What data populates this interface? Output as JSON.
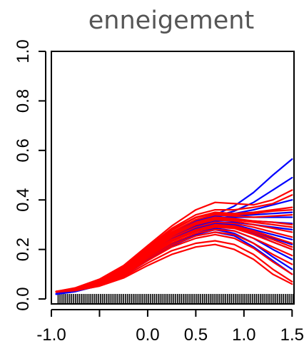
{
  "chart_data": {
    "type": "line",
    "title": "enneigement",
    "xlabel": "",
    "ylabel": "",
    "xlim": [
      -1.0,
      1.52
    ],
    "ylim": [
      -0.02,
      1.0
    ],
    "x_ticks": [
      -1.0,
      -0.5,
      0.0,
      0.5,
      1.0,
      1.5
    ],
    "x_tick_labels": [
      "-1.0",
      "",
      "0.0",
      "0.5",
      "1.0",
      "1.5"
    ],
    "y_ticks": [
      0.0,
      0.2,
      0.4,
      0.6,
      0.8,
      1.0
    ],
    "y_tick_labels": [
      "0.0",
      "0.2",
      "0.4",
      "0.6",
      "0.8",
      "1.0"
    ],
    "grid": false,
    "legend": "none",
    "colors": {
      "blue": "#0000ff",
      "red": "#ff0000",
      "axis": "#000000",
      "title": "#555555"
    },
    "x": [
      -0.95,
      -0.75,
      -0.5,
      -0.25,
      0.0,
      0.25,
      0.5,
      0.7,
      0.9,
      1.1,
      1.3,
      1.5
    ],
    "series": [
      {
        "color": "blue",
        "values": [
          0.02,
          0.035,
          0.07,
          0.125,
          0.2,
          0.265,
          0.315,
          0.34,
          0.375,
          0.43,
          0.5,
          0.565
        ]
      },
      {
        "color": "blue",
        "values": [
          0.02,
          0.035,
          0.07,
          0.125,
          0.2,
          0.265,
          0.31,
          0.335,
          0.355,
          0.39,
          0.44,
          0.49
        ]
      },
      {
        "color": "blue",
        "values": [
          0.02,
          0.033,
          0.066,
          0.12,
          0.195,
          0.26,
          0.305,
          0.33,
          0.345,
          0.36,
          0.38,
          0.4
        ]
      },
      {
        "color": "blue",
        "values": [
          0.02,
          0.033,
          0.066,
          0.118,
          0.19,
          0.255,
          0.3,
          0.325,
          0.335,
          0.34,
          0.345,
          0.35
        ]
      },
      {
        "color": "blue",
        "values": [
          0.02,
          0.032,
          0.064,
          0.115,
          0.185,
          0.25,
          0.295,
          0.32,
          0.33,
          0.33,
          0.33,
          0.33
        ]
      },
      {
        "color": "blue",
        "values": [
          0.02,
          0.032,
          0.062,
          0.112,
          0.18,
          0.245,
          0.29,
          0.31,
          0.31,
          0.3,
          0.29,
          0.28
        ]
      },
      {
        "color": "blue",
        "values": [
          0.02,
          0.031,
          0.06,
          0.11,
          0.175,
          0.24,
          0.285,
          0.305,
          0.3,
          0.28,
          0.26,
          0.24
        ]
      },
      {
        "color": "blue",
        "values": [
          0.02,
          0.031,
          0.058,
          0.105,
          0.17,
          0.235,
          0.275,
          0.295,
          0.29,
          0.265,
          0.23,
          0.2
        ]
      },
      {
        "color": "blue",
        "values": [
          0.02,
          0.03,
          0.056,
          0.1,
          0.165,
          0.225,
          0.265,
          0.285,
          0.275,
          0.245,
          0.2,
          0.16
        ]
      },
      {
        "color": "blue",
        "values": [
          0.02,
          0.03,
          0.055,
          0.098,
          0.16,
          0.22,
          0.26,
          0.28,
          0.265,
          0.225,
          0.17,
          0.12
        ]
      },
      {
        "color": "blue",
        "values": [
          0.02,
          0.03,
          0.054,
          0.095,
          0.155,
          0.215,
          0.255,
          0.27,
          0.255,
          0.21,
          0.155,
          0.1
        ]
      },
      {
        "color": "blue",
        "values": [
          0.02,
          0.032,
          0.063,
          0.113,
          0.183,
          0.248,
          0.293,
          0.315,
          0.32,
          0.315,
          0.31,
          0.305
        ]
      },
      {
        "color": "blue",
        "values": [
          0.02,
          0.031,
          0.059,
          0.108,
          0.173,
          0.238,
          0.28,
          0.3,
          0.295,
          0.27,
          0.245,
          0.22
        ]
      },
      {
        "color": "red",
        "values": [
          0.03,
          0.045,
          0.08,
          0.135,
          0.215,
          0.295,
          0.36,
          0.39,
          0.385,
          0.38,
          0.4,
          0.44
        ]
      },
      {
        "color": "red",
        "values": [
          0.03,
          0.044,
          0.078,
          0.132,
          0.21,
          0.285,
          0.34,
          0.36,
          0.36,
          0.37,
          0.385,
          0.42
        ]
      },
      {
        "color": "red",
        "values": [
          0.03,
          0.043,
          0.076,
          0.128,
          0.205,
          0.28,
          0.33,
          0.35,
          0.345,
          0.35,
          0.36,
          0.37
        ]
      },
      {
        "color": "red",
        "values": [
          0.03,
          0.042,
          0.074,
          0.125,
          0.2,
          0.27,
          0.32,
          0.34,
          0.335,
          0.33,
          0.335,
          0.34
        ]
      },
      {
        "color": "red",
        "values": [
          0.03,
          0.042,
          0.072,
          0.122,
          0.195,
          0.265,
          0.31,
          0.33,
          0.325,
          0.315,
          0.31,
          0.3
        ]
      },
      {
        "color": "red",
        "values": [
          0.03,
          0.041,
          0.07,
          0.118,
          0.19,
          0.255,
          0.3,
          0.32,
          0.315,
          0.3,
          0.285,
          0.27
        ]
      },
      {
        "color": "red",
        "values": [
          0.03,
          0.04,
          0.068,
          0.115,
          0.185,
          0.248,
          0.29,
          0.31,
          0.305,
          0.29,
          0.27,
          0.25
        ]
      },
      {
        "color": "red",
        "values": [
          0.03,
          0.04,
          0.066,
          0.112,
          0.18,
          0.24,
          0.28,
          0.3,
          0.295,
          0.275,
          0.25,
          0.225
        ]
      },
      {
        "color": "red",
        "values": [
          0.028,
          0.039,
          0.064,
          0.108,
          0.175,
          0.233,
          0.272,
          0.29,
          0.285,
          0.26,
          0.23,
          0.2
        ]
      },
      {
        "color": "red",
        "values": [
          0.028,
          0.038,
          0.062,
          0.105,
          0.17,
          0.226,
          0.265,
          0.28,
          0.275,
          0.245,
          0.21,
          0.175
        ]
      },
      {
        "color": "red",
        "values": [
          0.028,
          0.037,
          0.06,
          0.1,
          0.163,
          0.218,
          0.255,
          0.27,
          0.26,
          0.225,
          0.18,
          0.14
        ]
      },
      {
        "color": "red",
        "values": [
          0.028,
          0.036,
          0.058,
          0.096,
          0.155,
          0.21,
          0.245,
          0.26,
          0.245,
          0.205,
          0.15,
          0.1
        ]
      },
      {
        "color": "red",
        "values": [
          0.028,
          0.035,
          0.055,
          0.09,
          0.145,
          0.195,
          0.225,
          0.235,
          0.22,
          0.18,
          0.12,
          0.07
        ]
      },
      {
        "color": "red",
        "values": [
          0.028,
          0.034,
          0.052,
          0.085,
          0.135,
          0.18,
          0.21,
          0.22,
          0.2,
          0.16,
          0.1,
          0.06
        ]
      },
      {
        "color": "red",
        "values": [
          0.03,
          0.043,
          0.075,
          0.127,
          0.203,
          0.277,
          0.328,
          0.345,
          0.34,
          0.345,
          0.355,
          0.36
        ]
      },
      {
        "color": "red",
        "values": [
          0.03,
          0.041,
          0.071,
          0.12,
          0.193,
          0.26,
          0.305,
          0.325,
          0.32,
          0.31,
          0.3,
          0.29
        ]
      },
      {
        "color": "red",
        "values": [
          0.029,
          0.039,
          0.065,
          0.11,
          0.178,
          0.237,
          0.277,
          0.295,
          0.29,
          0.268,
          0.24,
          0.21
        ]
      }
    ],
    "rug": [
      -0.93,
      -0.91,
      -0.89,
      -0.87,
      -0.85,
      -0.83,
      -0.81,
      -0.79,
      -0.77,
      -0.75,
      -0.73,
      -0.71,
      -0.69,
      -0.67,
      -0.65,
      -0.63,
      -0.61,
      -0.59,
      -0.57,
      -0.55,
      -0.53,
      -0.51,
      -0.49,
      -0.47,
      -0.45,
      -0.43,
      -0.41,
      -0.39,
      -0.37,
      -0.35,
      -0.33,
      -0.31,
      -0.29,
      -0.27,
      -0.25,
      -0.23,
      -0.21,
      -0.19,
      -0.17,
      -0.15,
      -0.13,
      -0.11,
      -0.09,
      -0.07,
      -0.05,
      -0.03,
      -0.01,
      0.01,
      0.03,
      0.05,
      0.07,
      0.09,
      0.11,
      0.13,
      0.15,
      0.17,
      0.19,
      0.21,
      0.23,
      0.25,
      0.27,
      0.29,
      0.31,
      0.33,
      0.35,
      0.37,
      0.39,
      0.41,
      0.43,
      0.45,
      0.47,
      0.49,
      0.51,
      0.53,
      0.55,
      0.57,
      0.59,
      0.61,
      0.63,
      0.65,
      0.67,
      0.69,
      0.71,
      0.73,
      0.75,
      0.77,
      0.79,
      0.81,
      0.83,
      0.85,
      0.87,
      0.89,
      0.91,
      0.93,
      0.95,
      0.97,
      0.99,
      1.01,
      1.03,
      1.05,
      1.07,
      1.09,
      1.11,
      1.13,
      1.15,
      1.17,
      1.19,
      1.21,
      1.23,
      1.25,
      1.27,
      1.29,
      1.31,
      1.33,
      1.35,
      1.37,
      1.39,
      1.41,
      1.43,
      1.45,
      1.47,
      1.49,
      1.51
    ]
  }
}
